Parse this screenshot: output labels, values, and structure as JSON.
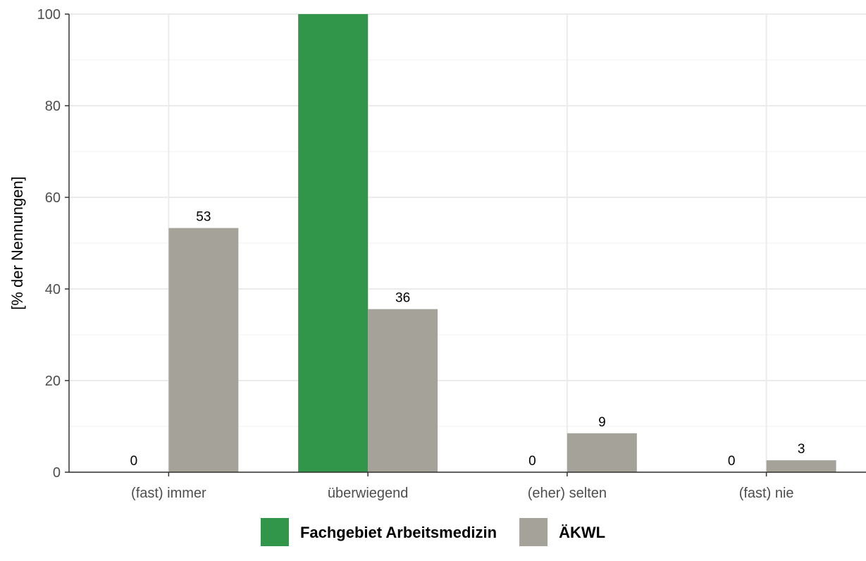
{
  "chart_data": {
    "type": "bar",
    "title": "",
    "xlabel": "",
    "ylabel": "[% der Nennungen]",
    "ylim": [
      0,
      100
    ],
    "yticks": [
      0,
      20,
      40,
      60,
      80,
      100
    ],
    "grid": true,
    "legend_position": "bottom",
    "categories": [
      "(fast) immer",
      "überwiegend",
      "(eher) selten",
      "(fast) nie"
    ],
    "series": [
      {
        "name": "Fachgebiet Arbeitsmedizin",
        "color": "#31954a",
        "values": [
          0,
          100,
          0,
          0
        ],
        "labels": [
          "0",
          "",
          "0",
          "0"
        ]
      },
      {
        "name": "ÄKWL",
        "color": "#a5a29a",
        "values": [
          53.3,
          35.6,
          8.5,
          2.6
        ],
        "labels": [
          "53",
          "36",
          "9",
          "3"
        ]
      }
    ]
  }
}
